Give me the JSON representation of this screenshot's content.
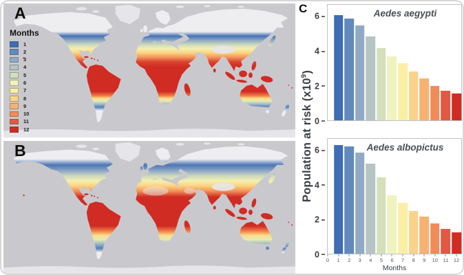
{
  "panels": {
    "a_label": "A",
    "b_label": "B",
    "c_label": "C"
  },
  "legend": {
    "title": "Months",
    "months": [
      "1",
      "2",
      "3",
      "4",
      "5",
      "6",
      "7",
      "8",
      "9",
      "10",
      "11",
      "12"
    ],
    "colors": [
      "#3e6db1",
      "#6189bd",
      "#91a9c5",
      "#b6c5c4",
      "#d4dfbc",
      "#f0f3bd",
      "#fdeea6",
      "#fbd289",
      "#f7b273",
      "#f08c59",
      "#e25843",
      "#d02c24"
    ]
  },
  "map_colors": {
    "ocean": "#c9c9cd",
    "land": "#eeeef0",
    "ice": "#e6e6ea"
  },
  "axis": {
    "ylabel_prefix": "Population at risk (x10",
    "ylabel_sup": "9",
    "ylabel_suffix": ")",
    "xlabel": "Months",
    "y_ticks": [
      "0",
      "2",
      "4",
      "6"
    ],
    "x_ticks": [
      "0",
      "1",
      "2",
      "3",
      "4",
      "5",
      "6",
      "7",
      "8",
      "9",
      "10",
      "11",
      "12"
    ]
  },
  "chart_data": [
    {
      "type": "bar",
      "title": "Aedes aegypti",
      "categories": [
        1,
        2,
        3,
        4,
        5,
        6,
        7,
        8,
        9,
        10,
        11,
        12
      ],
      "values": [
        6.1,
        5.9,
        5.5,
        4.85,
        4.2,
        3.7,
        3.3,
        2.85,
        2.45,
        2.0,
        1.7,
        1.55
      ],
      "xlabel": "Months",
      "ylabel": "Population at risk (x10^9)",
      "ylim": [
        0,
        6.7
      ],
      "grid": false,
      "legend_position": "none"
    },
    {
      "type": "bar",
      "title": "Aedes albopictus",
      "categories": [
        1,
        2,
        3,
        4,
        5,
        6,
        7,
        8,
        9,
        10,
        11,
        12
      ],
      "values": [
        6.35,
        6.25,
        5.9,
        5.25,
        4.45,
        3.4,
        2.95,
        2.5,
        2.15,
        1.75,
        1.45,
        1.25
      ],
      "xlabel": "Months",
      "ylabel": "Population at risk (x10^9)",
      "ylim": [
        0,
        6.7
      ],
      "grid": false,
      "legend_position": "none"
    }
  ]
}
